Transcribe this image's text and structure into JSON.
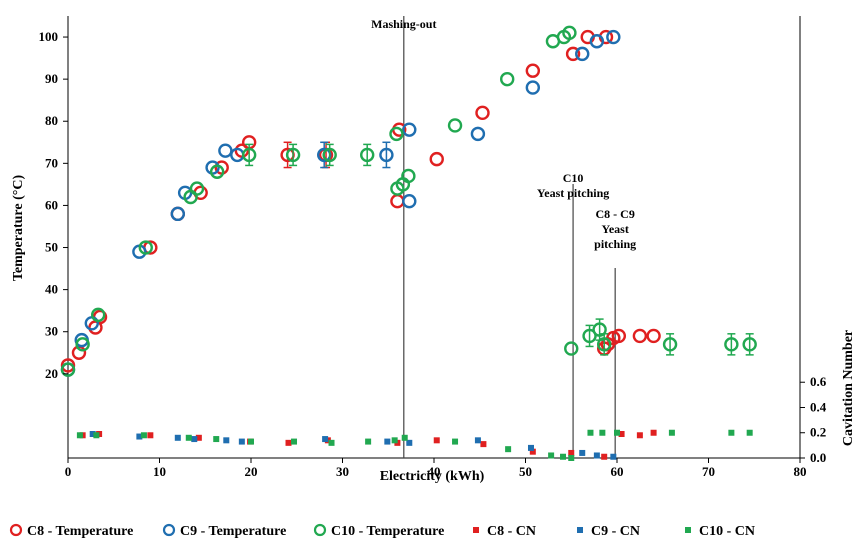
{
  "chart_data": {
    "type": "scatter",
    "title": "",
    "xlabel": "Electricity (kWh)",
    "ylabel": "Temperature (°C)",
    "y2label": "Cavitation Number",
    "xlim": [
      0,
      80
    ],
    "xticks": [
      0,
      10,
      20,
      30,
      40,
      50,
      60,
      70,
      80
    ],
    "ylim": [
      0,
      105
    ],
    "yticks": [
      20,
      30,
      40,
      50,
      60,
      70,
      80,
      90,
      100
    ],
    "y2lim": [
      0,
      3.5
    ],
    "y2ticks": [
      "0.0",
      "0.2",
      "0.4",
      "0.6"
    ],
    "legend_position": "bottom",
    "annotations": [
      {
        "lines": [
          "Mashing-out"
        ],
        "x": 36.7
      },
      {
        "lines": [
          "C10",
          "Yeast pitching"
        ],
        "x": 55.2
      },
      {
        "lines": [
          "C8 - C9",
          "Yeast",
          "pitching"
        ],
        "x": 59.8
      }
    ],
    "series": [
      {
        "name": "C8 - Temperature",
        "axis": "temp",
        "marker": "circle",
        "color": "#e02020",
        "points": [
          [
            0,
            22
          ],
          [
            1.2,
            25
          ],
          [
            3,
            31
          ],
          [
            3.5,
            33.5
          ],
          [
            9,
            50
          ],
          [
            12,
            58
          ],
          [
            14.5,
            63
          ],
          [
            16.8,
            69
          ],
          [
            19,
            73
          ],
          [
            19.8,
            75
          ],
          [
            24,
            72
          ],
          [
            28.2,
            72
          ],
          [
            36,
            61
          ],
          [
            36.2,
            78
          ],
          [
            40.3,
            71
          ],
          [
            45.3,
            82
          ],
          [
            50.8,
            92
          ],
          [
            55.2,
            96
          ],
          [
            56.8,
            100
          ],
          [
            58.8,
            100
          ],
          [
            58.6,
            26
          ],
          [
            59,
            27
          ],
          [
            59.6,
            28.5
          ],
          [
            60.2,
            29
          ],
          [
            62.5,
            29
          ],
          [
            64,
            29
          ]
        ],
        "errors": [
          [
            24,
            72,
            3
          ],
          [
            28.2,
            72,
            3
          ]
        ]
      },
      {
        "name": "C9 - Temperature",
        "axis": "temp",
        "marker": "circle",
        "color": "#1f6eb0",
        "points": [
          [
            0,
            21
          ],
          [
            1.5,
            28
          ],
          [
            2.6,
            32
          ],
          [
            7.8,
            49
          ],
          [
            12,
            58
          ],
          [
            12.8,
            63
          ],
          [
            15.8,
            69
          ],
          [
            17.2,
            73
          ],
          [
            18.5,
            72
          ],
          [
            28,
            72
          ],
          [
            34.8,
            72
          ],
          [
            37.3,
            78
          ],
          [
            37.3,
            61
          ],
          [
            44.8,
            77
          ],
          [
            50.8,
            88
          ],
          [
            56.2,
            96
          ],
          [
            57.8,
            99
          ],
          [
            59.6,
            100
          ]
        ],
        "errors": [
          [
            28,
            72,
            3
          ],
          [
            34.8,
            72,
            3
          ]
        ]
      },
      {
        "name": "C10 - Temperature",
        "axis": "temp",
        "marker": "circle",
        "color": "#21a850",
        "points": [
          [
            0,
            21
          ],
          [
            1.6,
            27
          ],
          [
            3.3,
            34
          ],
          [
            8.5,
            50
          ],
          [
            13.4,
            62
          ],
          [
            14.1,
            64
          ],
          [
            16.3,
            68
          ],
          [
            19.8,
            72
          ],
          [
            24.6,
            72
          ],
          [
            28.6,
            72
          ],
          [
            32.7,
            72
          ],
          [
            35.9,
            77
          ],
          [
            36,
            64
          ],
          [
            36.6,
            65
          ],
          [
            37.2,
            67
          ],
          [
            42.3,
            79
          ],
          [
            48,
            90
          ],
          [
            53,
            99
          ],
          [
            54.2,
            100
          ],
          [
            54.8,
            101
          ],
          [
            55,
            26
          ],
          [
            57,
            29
          ],
          [
            58.1,
            30.5
          ],
          [
            58.6,
            27
          ],
          [
            65.8,
            27
          ],
          [
            72.5,
            27
          ],
          [
            74.5,
            27
          ]
        ],
        "errors": [
          [
            19.8,
            72,
            2.5
          ],
          [
            24.6,
            72,
            2.5
          ],
          [
            28.6,
            72,
            2.5
          ],
          [
            32.7,
            72,
            2.5
          ],
          [
            57,
            29,
            2.5
          ],
          [
            58.1,
            30.5,
            2.5
          ],
          [
            58.6,
            27,
            2.5
          ],
          [
            65.8,
            27,
            2.5
          ],
          [
            72.5,
            27,
            2.5
          ],
          [
            74.5,
            27,
            2.5
          ]
        ]
      },
      {
        "name": "C8 - CN",
        "axis": "cn",
        "marker": "square",
        "color": "#e02020",
        "points": [
          [
            1.6,
            0.18
          ],
          [
            3.4,
            0.19
          ],
          [
            9,
            0.18
          ],
          [
            14.3,
            0.16
          ],
          [
            19.9,
            0.13
          ],
          [
            24.1,
            0.12
          ],
          [
            28.4,
            0.14
          ],
          [
            36,
            0.12
          ],
          [
            40.3,
            0.14
          ],
          [
            45.4,
            0.11
          ],
          [
            50.8,
            0.05
          ],
          [
            55,
            0.04
          ],
          [
            58.6,
            0.01
          ],
          [
            60.5,
            0.19
          ],
          [
            62.5,
            0.18
          ],
          [
            64,
            0.2
          ]
        ]
      },
      {
        "name": "C9 - CN",
        "axis": "cn",
        "marker": "square",
        "color": "#1f6eb0",
        "points": [
          [
            2.7,
            0.19
          ],
          [
            7.8,
            0.17
          ],
          [
            12,
            0.16
          ],
          [
            13.8,
            0.15
          ],
          [
            17.3,
            0.14
          ],
          [
            19,
            0.13
          ],
          [
            28.1,
            0.15
          ],
          [
            34.9,
            0.13
          ],
          [
            37.3,
            0.12
          ],
          [
            44.8,
            0.14
          ],
          [
            50.6,
            0.08
          ],
          [
            56.2,
            0.04
          ],
          [
            57.8,
            0.02
          ],
          [
            59.6,
            0.01
          ]
        ]
      },
      {
        "name": "C10 - CN",
        "axis": "cn",
        "marker": "square",
        "color": "#21a850",
        "points": [
          [
            1.3,
            0.18
          ],
          [
            3.1,
            0.18
          ],
          [
            8.3,
            0.18
          ],
          [
            13.2,
            0.16
          ],
          [
            16.2,
            0.15
          ],
          [
            20,
            0.13
          ],
          [
            24.7,
            0.13
          ],
          [
            28.8,
            0.12
          ],
          [
            32.8,
            0.13
          ],
          [
            35.7,
            0.14
          ],
          [
            36.8,
            0.16
          ],
          [
            42.3,
            0.13
          ],
          [
            48.1,
            0.07
          ],
          [
            52.8,
            0.02
          ],
          [
            54.1,
            0.01
          ],
          [
            55,
            0.0
          ],
          [
            57.1,
            0.2
          ],
          [
            58.4,
            0.2
          ],
          [
            60,
            0.2
          ],
          [
            66,
            0.2
          ],
          [
            72.5,
            0.2
          ],
          [
            74.5,
            0.2
          ]
        ]
      }
    ]
  }
}
